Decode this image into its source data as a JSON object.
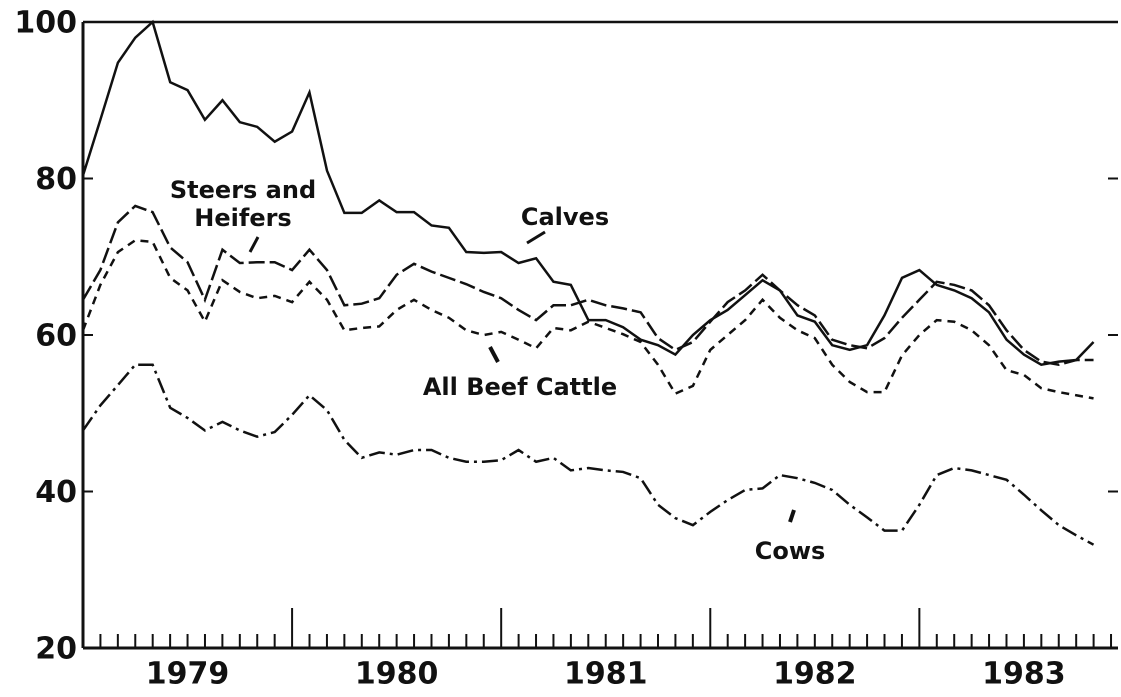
{
  "chart_data": {
    "type": "line",
    "x": [
      1979,
      1979.083,
      1979.167,
      1979.25,
      1979.333,
      1979.417,
      1979.5,
      1979.583,
      1979.667,
      1979.75,
      1979.833,
      1979.917,
      1980,
      1980.083,
      1980.167,
      1980.25,
      1980.333,
      1980.417,
      1980.5,
      1980.583,
      1980.667,
      1980.75,
      1980.833,
      1980.917,
      1981,
      1981.083,
      1981.167,
      1981.25,
      1981.333,
      1981.417,
      1981.5,
      1981.583,
      1981.667,
      1981.75,
      1981.833,
      1981.917,
      1982,
      1982.083,
      1982.167,
      1982.25,
      1982.333,
      1982.417,
      1982.5,
      1982.583,
      1982.667,
      1982.75,
      1982.833,
      1982.917,
      1983,
      1983.083,
      1983.167,
      1983.25,
      1983.333,
      1983.417,
      1983.5,
      1983.583,
      1983.667,
      1983.75,
      1983.833
    ],
    "series": [
      {
        "name": "Calves",
        "color": "#111111",
        "dash": "none",
        "values": [
          80.4,
          87.5,
          94.8,
          98,
          100,
          92.3,
          91.3,
          87.5,
          90,
          87.2,
          86.6,
          84.7,
          86,
          91,
          81,
          75.6,
          75.6,
          77.2,
          75.7,
          75.7,
          74,
          73.7,
          70.6,
          70.5,
          70.6,
          69.2,
          69.8,
          66.8,
          66.4,
          61.9,
          61.9,
          61,
          59.4,
          58.7,
          57.5,
          60,
          61.9,
          63.2,
          65.1,
          67,
          65.7,
          62.5,
          61.7,
          58.7,
          58.1,
          58.7,
          62.5,
          67.3,
          68.3,
          66.4,
          65.7,
          64.7,
          62.9,
          59.4,
          57.5,
          56.2,
          56.6,
          56.8,
          59.1
        ]
      },
      {
        "name": "Steers and Heifers",
        "color": "#111111",
        "dash": "16 5",
        "values": [
          64.5,
          68.3,
          74.4,
          76.5,
          75.7,
          71.2,
          69.3,
          64.5,
          70.9,
          69.2,
          69.3,
          69.3,
          68.3,
          70.9,
          68.3,
          63.8,
          64,
          64.7,
          67.7,
          69.1,
          68.1,
          67.3,
          66.5,
          65.5,
          64.7,
          63.2,
          61.9,
          63.8,
          63.8,
          64.5,
          63.8,
          63.4,
          62.9,
          59.6,
          58.1,
          59.1,
          61.7,
          64.2,
          65.7,
          67.7,
          65.7,
          63.8,
          62.5,
          59.4,
          58.7,
          58.3,
          59.6,
          62.2,
          64.5,
          66.8,
          66.4,
          65.7,
          63.8,
          60.6,
          58.1,
          56.6,
          56.2,
          56.8,
          56.8
        ]
      },
      {
        "name": "All Beef Cattle",
        "color": "#111111",
        "dash": "8 6",
        "values": [
          60.6,
          66.4,
          70.6,
          72.1,
          71.9,
          67.3,
          65.7,
          61.7,
          67,
          65.5,
          64.7,
          65,
          64.2,
          66.8,
          64.5,
          60.6,
          60.9,
          61.1,
          63.2,
          64.5,
          63.2,
          62.2,
          60.6,
          60,
          60.4,
          59.4,
          58.3,
          60.9,
          60.6,
          61.7,
          60.9,
          60.1,
          59.1,
          56.2,
          52.5,
          53.5,
          58.1,
          60,
          61.9,
          64.5,
          62.2,
          60.6,
          59.6,
          56.2,
          54,
          52.7,
          52.7,
          57.4,
          60,
          61.9,
          61.7,
          60.6,
          58.7,
          55.5,
          54.9,
          53.2,
          52.7,
          52.3,
          51.9
        ]
      },
      {
        "name": "Cows",
        "color": "#111111",
        "dash": "16 5 3 5",
        "values": [
          47.8,
          51,
          53.6,
          56.2,
          56.2,
          50.7,
          49.4,
          47.8,
          48.9,
          47.8,
          47,
          47.6,
          49.8,
          52.3,
          50.4,
          46.6,
          44.3,
          45,
          44.7,
          45.3,
          45.3,
          44.3,
          43.8,
          43.8,
          44,
          45.3,
          43.8,
          44.3,
          42.7,
          43,
          42.7,
          42.5,
          41.7,
          38.3,
          36.6,
          35.7,
          37.4,
          38.9,
          40.2,
          40.4,
          42.1,
          41.7,
          41.1,
          40.2,
          38.3,
          36.7,
          35,
          35,
          38.3,
          42.1,
          43,
          42.7,
          42.1,
          41.5,
          39.6,
          37.6,
          35.7,
          34.4,
          33.2
        ]
      }
    ],
    "xlim": [
      1979,
      1983.95
    ],
    "xticks": [
      {
        "value": 1979.5,
        "label": "1979"
      },
      {
        "value": 1980.5,
        "label": "1980"
      },
      {
        "value": 1981.5,
        "label": "1981"
      },
      {
        "value": 1982.5,
        "label": "1982"
      },
      {
        "value": 1983.5,
        "label": "1983"
      }
    ],
    "ylim": [
      20,
      100
    ],
    "yticks": [
      20,
      40,
      60,
      80,
      100
    ]
  }
}
